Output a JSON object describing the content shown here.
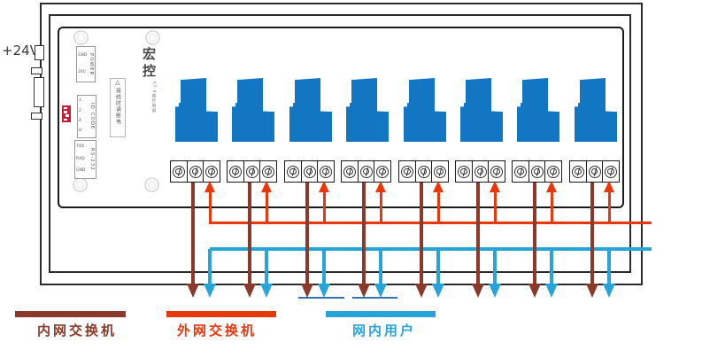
{
  "labels": {
    "supply": "+24V"
  },
  "device": {
    "brand": "宏控",
    "brand_sub": "KT-8路控制器",
    "warning_icon": "△",
    "warning_text": "接线时请断电",
    "power": {
      "label": "POWER",
      "pins": [
        "GND",
        "24V"
      ]
    },
    "id_code": {
      "label": "ID CODE",
      "pins": [
        "1",
        "2",
        "4",
        "8"
      ]
    },
    "rs232": {
      "label": "RS-232",
      "pins": [
        "TXD",
        "RXD",
        "GND"
      ]
    }
  },
  "channels": {
    "count": 8
  },
  "legend": {
    "items": [
      {
        "id": "intranet",
        "label": "内网交换机",
        "color": "#8a3a2a"
      },
      {
        "id": "extranet",
        "label": "外网交换机",
        "color": "#e8380d"
      },
      {
        "id": "users",
        "label": "网内用户",
        "color": "#29a4d9"
      }
    ]
  },
  "colors": {
    "intranet_wire": "#8a3a2a",
    "extranet_wire": "#e8380d",
    "user_wire": "#29a4d9",
    "relay_fill": "#1376c2",
    "underline": "#3a6fae"
  }
}
